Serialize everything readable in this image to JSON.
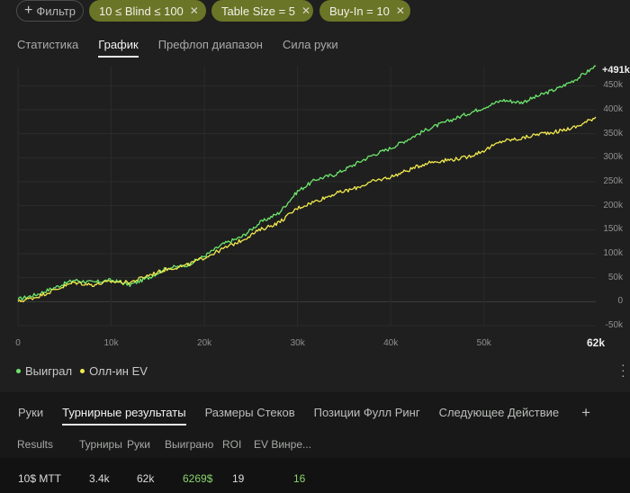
{
  "filters": {
    "add_label": "Фильтр",
    "chips": [
      "10 ≤ Blind ≤ 100",
      "Table Size = 5",
      "Buy-In = 10"
    ],
    "close_glyph": "✕"
  },
  "top_tabs": [
    {
      "label": "Статистика",
      "active": false
    },
    {
      "label": "График",
      "active": true
    },
    {
      "label": "Префлоп диапазон",
      "active": false
    },
    {
      "label": "Сила руки",
      "active": false
    }
  ],
  "chart_data": {
    "type": "line",
    "x": [
      0,
      2000,
      4000,
      6000,
      8000,
      10000,
      12000,
      14000,
      16000,
      18000,
      20000,
      22000,
      24000,
      26000,
      28000,
      30000,
      32000,
      34000,
      36000,
      38000,
      40000,
      42000,
      44000,
      46000,
      48000,
      50000,
      52000,
      54000,
      56000,
      58000,
      60000,
      62000
    ],
    "series": [
      {
        "name": "Выиграл",
        "color": "#6ee56c",
        "values": [
          5000,
          15000,
          30000,
          45000,
          40000,
          45000,
          35000,
          50000,
          70000,
          75000,
          95000,
          120000,
          135000,
          165000,
          185000,
          230000,
          255000,
          265000,
          285000,
          305000,
          320000,
          340000,
          360000,
          375000,
          390000,
          405000,
          420000,
          415000,
          430000,
          445000,
          465000,
          491000
        ]
      },
      {
        "name": "Олл-ин EV",
        "color": "#f2e94e",
        "values": [
          0,
          10000,
          25000,
          40000,
          35000,
          42000,
          40000,
          55000,
          68000,
          75000,
          92000,
          110000,
          128000,
          150000,
          165000,
          195000,
          210000,
          225000,
          235000,
          250000,
          260000,
          275000,
          290000,
          295000,
          300000,
          315000,
          335000,
          340000,
          350000,
          355000,
          365000,
          385000
        ]
      }
    ],
    "x_ticks": [
      "0",
      "10k",
      "20k",
      "30k",
      "40k",
      "50k"
    ],
    "x_tick_values": [
      0,
      10000,
      20000,
      30000,
      40000,
      50000
    ],
    "x_end_label": "62k",
    "y_ticks": [
      "450k",
      "400k",
      "350k",
      "300k",
      "250k",
      "200k",
      "150k",
      "100k",
      "50k",
      "0",
      "-50k"
    ],
    "y_tick_values": [
      450000,
      400000,
      350000,
      300000,
      250000,
      200000,
      150000,
      100000,
      50000,
      0,
      -50000
    ],
    "last_value_label": "+491k",
    "xlim": [
      0,
      62000
    ],
    "ylim": [
      -50000,
      490000
    ],
    "grid": true,
    "legend_placement": "bottom-left"
  },
  "legend": [
    {
      "label": "Выиграл",
      "color": "#6ee56c"
    },
    {
      "label": "Олл-ин EV",
      "color": "#f2e94e"
    }
  ],
  "bottom_tabs": {
    "items": [
      {
        "label": "Руки",
        "active": false
      },
      {
        "label": "Турнирные результаты",
        "active": true
      },
      {
        "label": "Размеры Стеков",
        "active": false
      },
      {
        "label": "Позиции Фулл Ринг",
        "active": false
      },
      {
        "label": "Следующее Действие",
        "active": false
      }
    ],
    "add_glyph": "+"
  },
  "table": {
    "headers": [
      "Results",
      "Турниры",
      "Руки",
      "Выиграно",
      "ROI",
      "EV Винре..."
    ],
    "row": [
      "10$ MTT",
      "3.4k",
      "62k",
      "6269$",
      "19",
      "16"
    ]
  },
  "colors": {
    "accent_chip": "#6b7527",
    "win_green": "#6ee56c",
    "ev_yellow": "#f2e94e"
  }
}
